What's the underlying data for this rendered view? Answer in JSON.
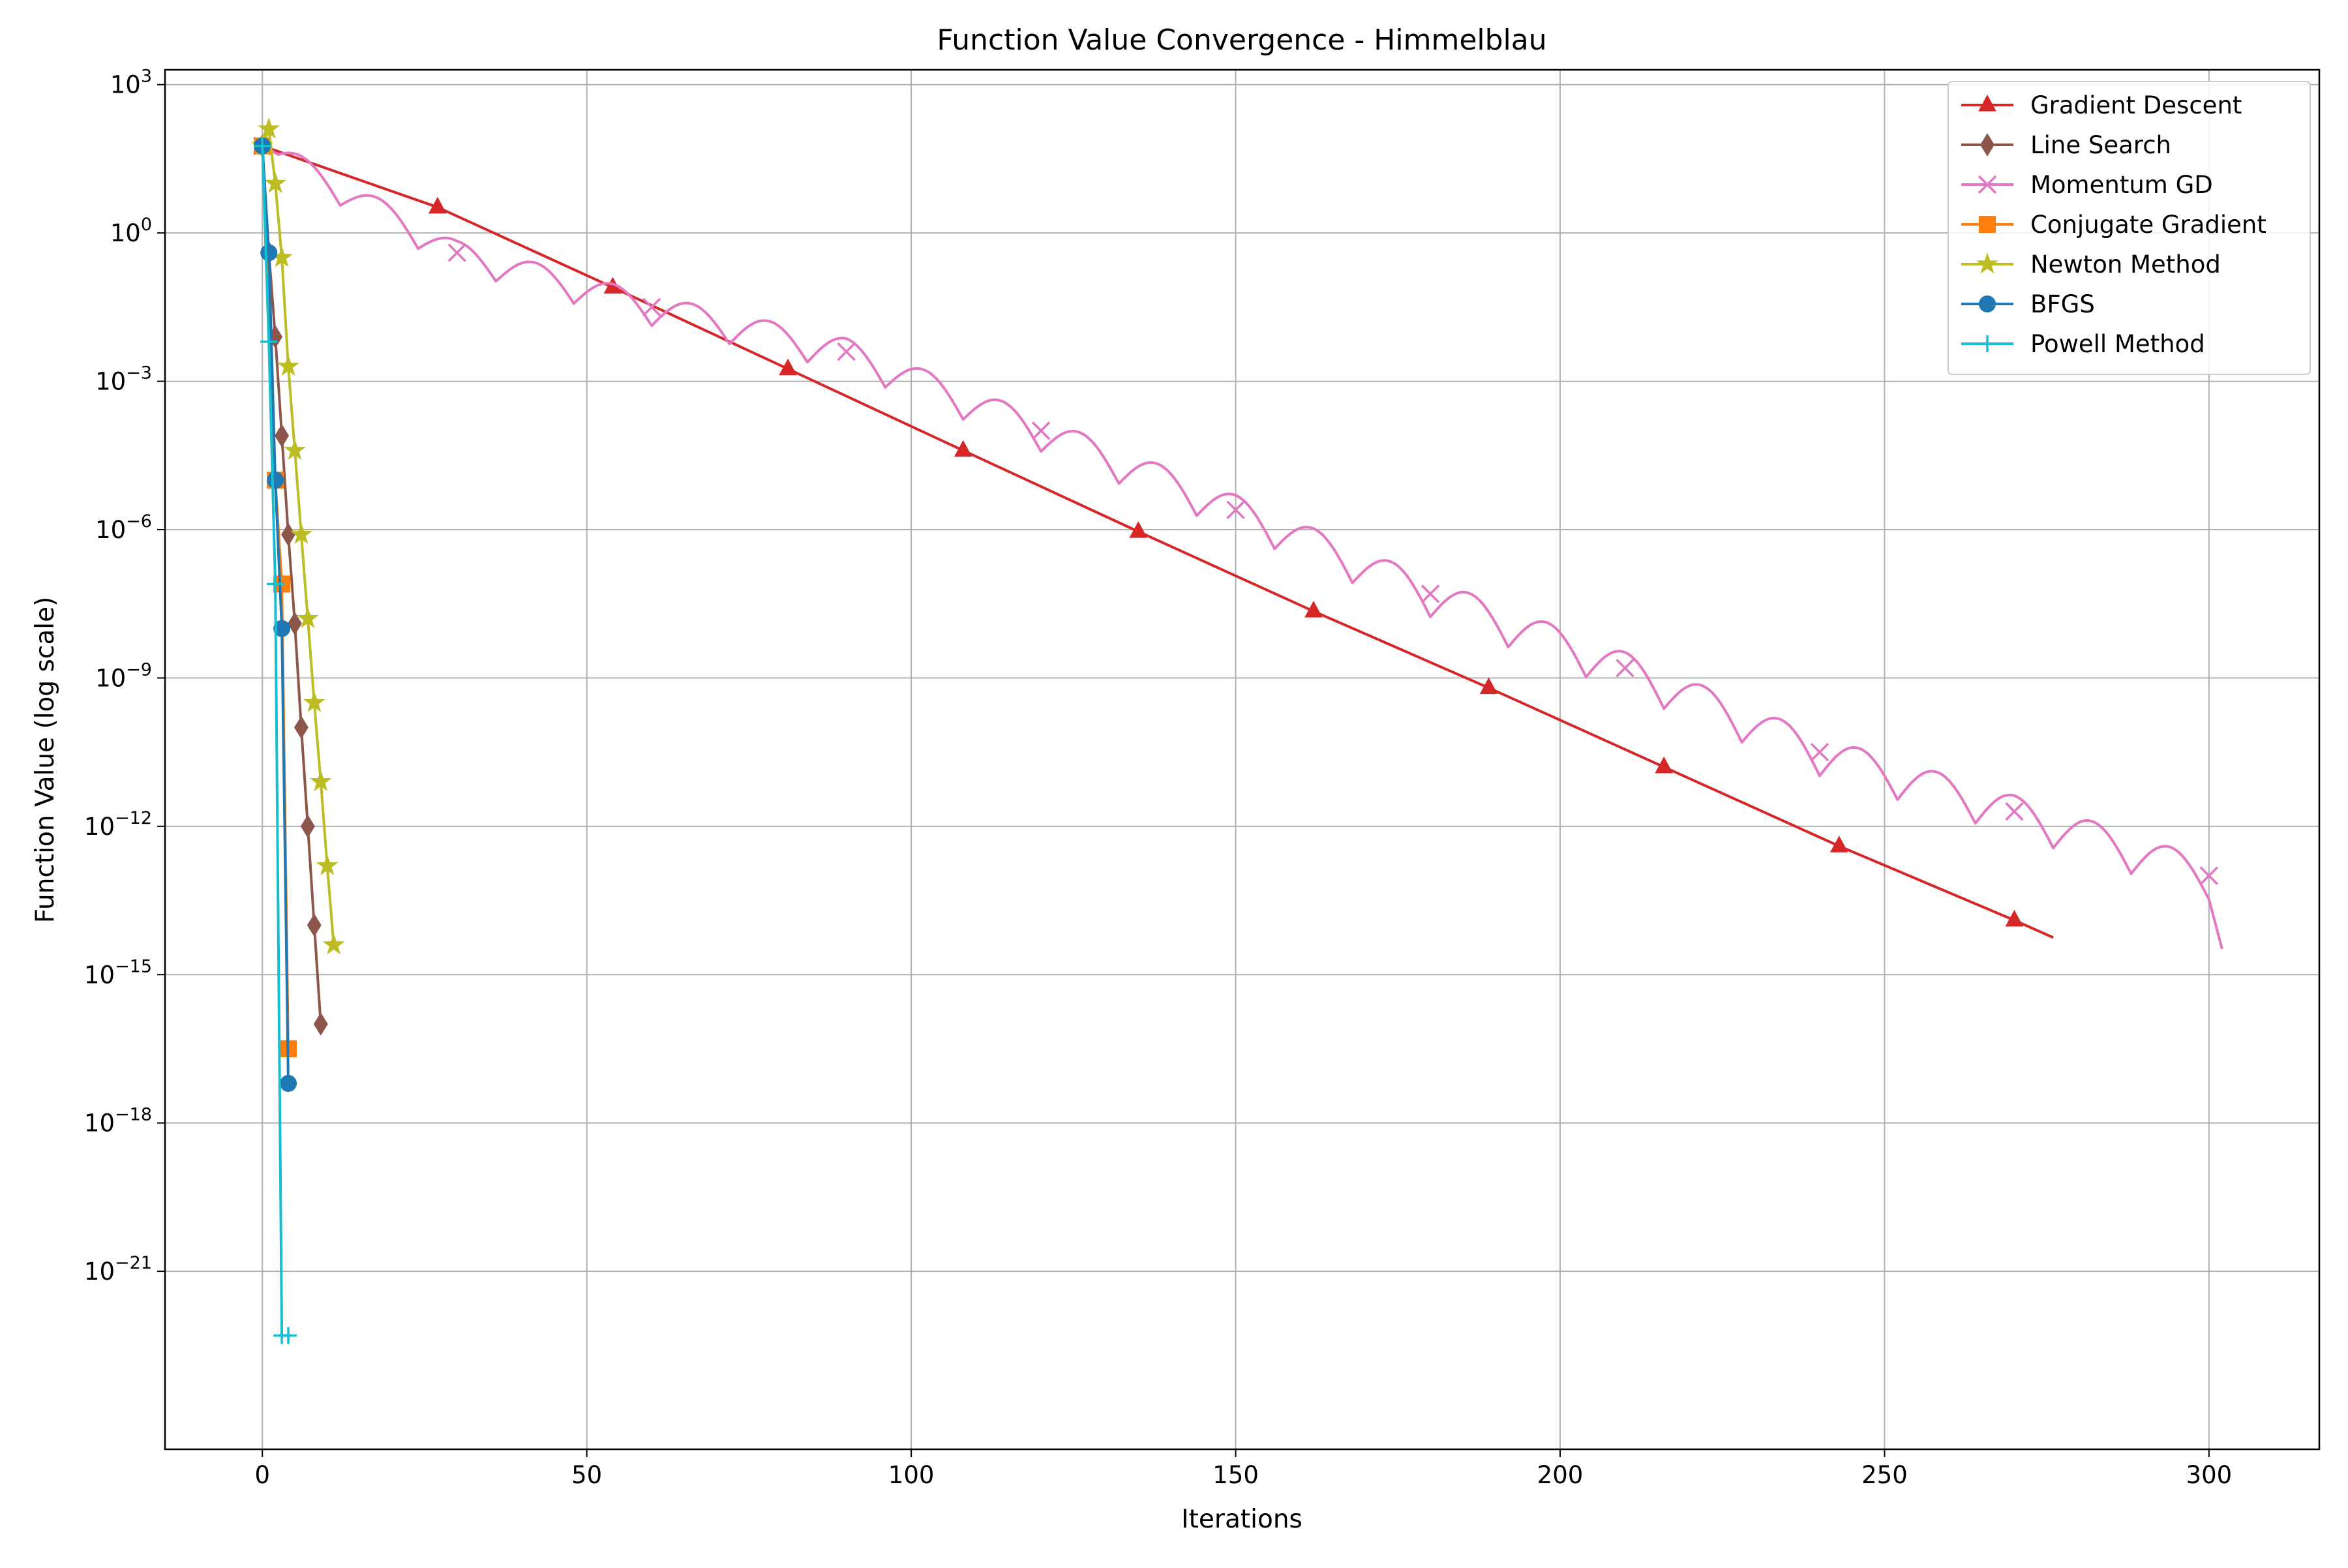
{
  "chart_data": {
    "type": "line",
    "title": "Function Value Convergence - Himmelblau",
    "xlabel": "Iterations",
    "ylabel": "Function Value (log scale)",
    "xscale": "linear",
    "yscale": "log",
    "xlim": [
      -15,
      317
    ],
    "ylim_log10": [
      -24.6,
      3.3
    ],
    "xticks": [
      0,
      50,
      100,
      150,
      200,
      250,
      300
    ],
    "xtick_labels": [
      "0",
      "50",
      "100",
      "150",
      "200",
      "250",
      "300"
    ],
    "yticks_log10": [
      3,
      0,
      -3,
      -6,
      -9,
      -12,
      -15,
      -18,
      -21
    ],
    "ytick_labels": [
      {
        "base": "10",
        "exp": "3"
      },
      {
        "base": "10",
        "exp": "0"
      },
      {
        "base": "10",
        "exp": "−3"
      },
      {
        "base": "10",
        "exp": "−6"
      },
      {
        "base": "10",
        "exp": "−9"
      },
      {
        "base": "10",
        "exp": "−12"
      },
      {
        "base": "10",
        "exp": "−15"
      },
      {
        "base": "10",
        "exp": "−18"
      },
      {
        "base": "10",
        "exp": "−21"
      }
    ],
    "grid": true,
    "legend_position": "top-right",
    "series": [
      {
        "name": "Gradient Descent",
        "color": "#d62728",
        "marker": "triangle",
        "markevery": 27,
        "x": [
          0,
          27,
          54,
          81,
          108,
          135,
          162,
          189,
          216,
          243,
          270,
          276
        ],
        "log10_y": [
          1.76,
          0.52,
          -1.1,
          -2.75,
          -4.4,
          -6.04,
          -7.65,
          -9.2,
          -10.8,
          -12.4,
          -13.9,
          -14.25
        ]
      },
      {
        "name": "Line Search",
        "color": "#8c564b",
        "marker": "diamond",
        "markevery": 1,
        "x": [
          0,
          1,
          2,
          3,
          4,
          5,
          6,
          7,
          8,
          9
        ],
        "log10_y": [
          1.76,
          -0.4,
          -2.1,
          -4.1,
          -6.1,
          -7.9,
          -10.0,
          -12.0,
          -14.0,
          -16.0
        ]
      },
      {
        "name": "Momentum GD",
        "color": "#e377c2",
        "marker": "x",
        "markevery": 30,
        "x": [
          0,
          30,
          60,
          90,
          120,
          150,
          180,
          210,
          240,
          270,
          300
        ],
        "log10_y": [
          1.76,
          -0.4,
          -1.5,
          -2.4,
          -4.0,
          -5.6,
          -7.3,
          -8.8,
          -10.5,
          -11.7,
          -13.0
        ],
        "end_x": 302,
        "end_log10_y": -14.4
      },
      {
        "name": "Conjugate Gradient",
        "color": "#ff7f0e",
        "marker": "square",
        "markevery": 1,
        "x": [
          0,
          2,
          3,
          4
        ],
        "log10_y": [
          1.76,
          -5.0,
          -7.1,
          -16.5
        ]
      },
      {
        "name": "Newton Method",
        "color": "#bcbd22",
        "marker": "star",
        "markevery": 1,
        "x": [
          0,
          1,
          2,
          3,
          4,
          5,
          6,
          7,
          8,
          9,
          10,
          11
        ],
        "log10_y": [
          1.76,
          2.1,
          1.0,
          -0.5,
          -2.7,
          -4.4,
          -6.1,
          -7.8,
          -9.5,
          -11.1,
          -12.8,
          -14.4
        ]
      },
      {
        "name": "BFGS",
        "color": "#1f77b4",
        "marker": "circle",
        "markevery": 1,
        "x": [
          0,
          1,
          2,
          3,
          4
        ],
        "log10_y": [
          1.76,
          -0.4,
          -5.0,
          -8.0,
          -17.2
        ]
      },
      {
        "name": "Powell Method",
        "color": "#17becf",
        "marker": "plus",
        "markevery": 1,
        "x": [
          0,
          1,
          2,
          3,
          4
        ],
        "log10_y": [
          1.76,
          -2.2,
          -7.1,
          -22.3,
          -22.3
        ]
      }
    ]
  }
}
